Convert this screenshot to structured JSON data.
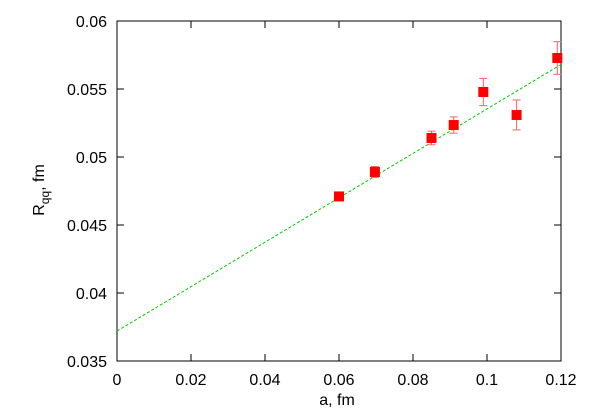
{
  "chart_data": {
    "type": "scatter",
    "xlabel": "a, fm",
    "ylabel": [
      "R",
      "qq",
      ", fm"
    ],
    "xlim": [
      0,
      0.12
    ],
    "ylim": [
      0.035,
      0.06
    ],
    "xticks": [
      0,
      0.02,
      0.04,
      0.06,
      0.08,
      0.1,
      0.12
    ],
    "yticks": [
      0.035,
      0.04,
      0.045,
      0.05,
      0.055,
      0.06
    ],
    "grid": false,
    "series": [
      {
        "color": "#ff0000",
        "errcolor": "#ff6060",
        "x": [
          0.06,
          0.0697,
          0.085,
          0.091,
          0.099,
          0.108,
          0.119
        ],
        "y": [
          0.0471,
          0.0489,
          0.0514,
          0.05235,
          0.05478,
          0.05309,
          0.05728
        ],
        "yerr": [
          0.0002,
          0.0004,
          0.0005,
          0.0006,
          0.001,
          0.0011,
          0.0012
        ]
      }
    ],
    "fit": {
      "color": "#00cc00",
      "x": [
        0,
        0.12
      ],
      "y": [
        0.0372,
        0.0568
      ]
    }
  }
}
